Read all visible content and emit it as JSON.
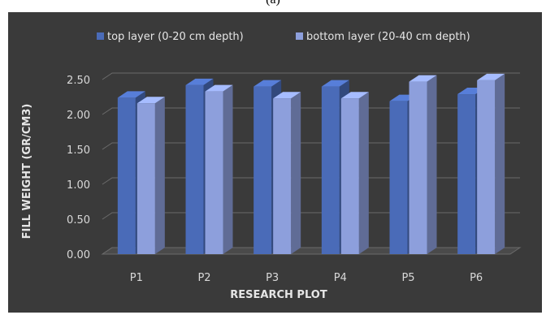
{
  "caption": "(a)",
  "chart_data": {
    "type": "bar",
    "title": "",
    "xlabel": "RESEARCH PLOT",
    "ylabel": "FILL WEIGHT (GR/CM3)",
    "categories": [
      "P1",
      "P2",
      "P3",
      "P4",
      "P5",
      "P6"
    ],
    "series": [
      {
        "name": "top layer (0-20 cm depth)",
        "values": [
          2.24,
          2.42,
          2.4,
          2.4,
          2.19,
          2.29
        ]
      },
      {
        "name": "bottom layer (20-40 cm depth)",
        "values": [
          2.16,
          2.33,
          2.23,
          2.23,
          2.47,
          2.49
        ]
      }
    ],
    "ylim": [
      0,
      2.5
    ],
    "yticks": [
      "0.00",
      "0.50",
      "1.00",
      "1.50",
      "2.00",
      "2.50"
    ],
    "grid": true,
    "legend_position": "top",
    "style": "3d-clustered-column",
    "colors": {
      "background": "#3a3a3a",
      "series_top": "#4a6bb8",
      "series_bottom": "#8d9fdc",
      "gridline": "#6b6b6b",
      "text": "#d9d9d9"
    }
  }
}
